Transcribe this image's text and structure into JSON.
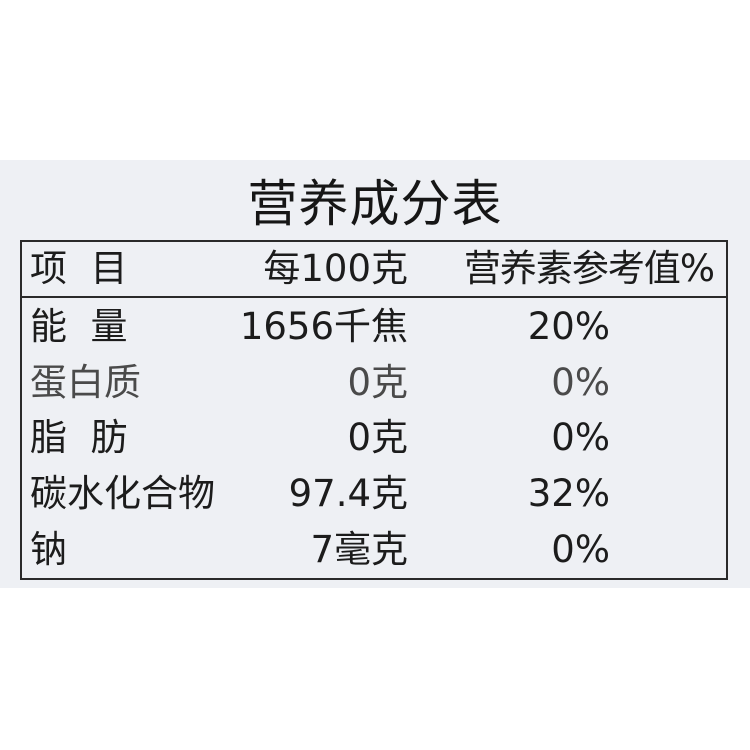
{
  "title": "营养成分表",
  "header": {
    "item": "项  目",
    "per100g": "每100克",
    "nrv": "营养素参考值%"
  },
  "rows": [
    {
      "item": "能  量",
      "amount": "1656千焦",
      "nrv": "20%"
    },
    {
      "item": "蛋白质",
      "amount": "0克",
      "nrv": "0%"
    },
    {
      "item": "脂  肪",
      "amount": "0克",
      "nrv": "0%"
    },
    {
      "item": "碳水化合物",
      "amount": "97.4克",
      "nrv": "32%"
    },
    {
      "item": "钠",
      "amount": "7毫克",
      "nrv": "0%"
    }
  ]
}
